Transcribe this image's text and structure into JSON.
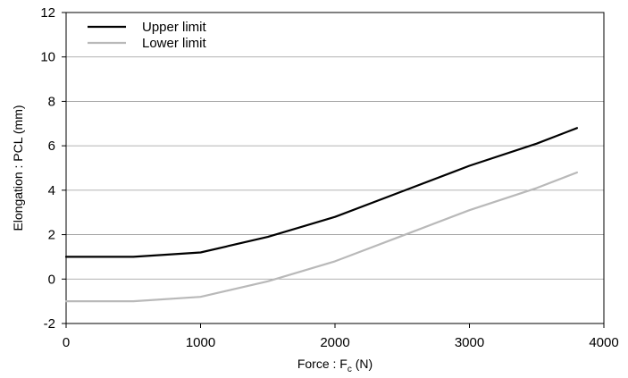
{
  "chart_data": {
    "type": "line",
    "title": "",
    "xlabel": {
      "prefix": "Force : F",
      "subscript": "c",
      "suffix": " (N)"
    },
    "ylabel": "Elongation : PCL (mm)",
    "xlim": [
      0,
      4000
    ],
    "ylim": [
      -2,
      12
    ],
    "x_ticks": [
      0,
      1000,
      2000,
      3000,
      4000
    ],
    "y_ticks": [
      -2,
      0,
      2,
      4,
      6,
      8,
      10,
      12
    ],
    "x_tick_labels": [
      "0",
      "1000",
      "2000",
      "3000",
      "4000"
    ],
    "y_tick_labels": [
      "-2",
      "0",
      "2",
      "4",
      "6",
      "8",
      "10",
      "12"
    ],
    "grid": "horizontal",
    "legend_position": "top-left",
    "series": [
      {
        "name": "Upper limit",
        "color": "#000000",
        "x": [
          0,
          500,
          1000,
          1500,
          2000,
          2500,
          3000,
          3500,
          3800
        ],
        "y": [
          1.0,
          1.0,
          1.2,
          1.9,
          2.8,
          3.95,
          5.1,
          6.1,
          6.8
        ]
      },
      {
        "name": "Lower limit",
        "color": "#b9b9b9",
        "x": [
          0,
          500,
          1000,
          1500,
          2000,
          2500,
          3000,
          3500,
          3800
        ],
        "y": [
          -1.0,
          -1.0,
          -0.8,
          -0.1,
          0.8,
          1.95,
          3.1,
          4.1,
          4.8
        ]
      }
    ]
  }
}
